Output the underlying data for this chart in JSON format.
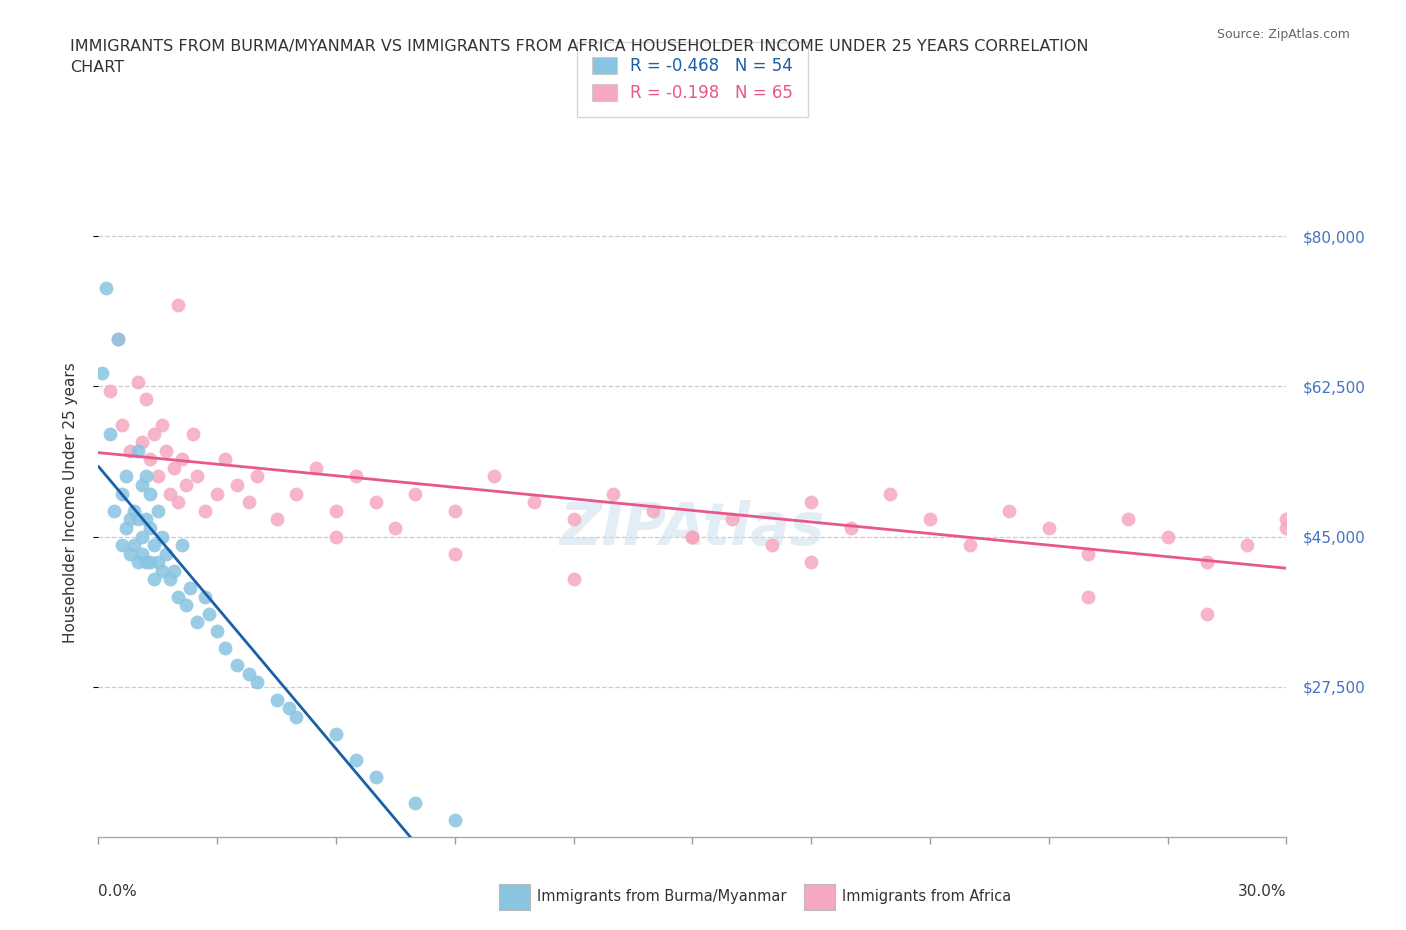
{
  "title_line1": "IMMIGRANTS FROM BURMA/MYANMAR VS IMMIGRANTS FROM AFRICA HOUSEHOLDER INCOME UNDER 25 YEARS CORRELATION",
  "title_line2": "CHART",
  "source_text": "Source: ZipAtlas.com",
  "ylabel": "Householder Income Under 25 years",
  "ytick_labels": [
    "$27,500",
    "$45,000",
    "$62,500",
    "$80,000"
  ],
  "ytick_values": [
    27500,
    45000,
    62500,
    80000
  ],
  "xmin": 0.0,
  "xmax": 0.3,
  "ymin": 10000,
  "ymax": 88000,
  "r_burma": -0.468,
  "n_burma": 54,
  "r_africa": -0.198,
  "n_africa": 65,
  "color_burma": "#89c4e1",
  "color_africa": "#f5a8c0",
  "line_color_burma": "#1a5fa8",
  "line_color_africa": "#e8578a",
  "legend_label_burma": "Immigrants from Burma/Myanmar",
  "legend_label_africa": "Immigrants from Africa",
  "burma_x": [
    0.001,
    0.002,
    0.003,
    0.004,
    0.005,
    0.006,
    0.006,
    0.007,
    0.007,
    0.008,
    0.008,
    0.009,
    0.009,
    0.01,
    0.01,
    0.01,
    0.011,
    0.011,
    0.011,
    0.012,
    0.012,
    0.012,
    0.013,
    0.013,
    0.013,
    0.014,
    0.014,
    0.015,
    0.015,
    0.016,
    0.016,
    0.017,
    0.018,
    0.019,
    0.02,
    0.021,
    0.022,
    0.023,
    0.025,
    0.027,
    0.028,
    0.03,
    0.032,
    0.035,
    0.038,
    0.04,
    0.045,
    0.048,
    0.05,
    0.06,
    0.065,
    0.07,
    0.08,
    0.09
  ],
  "burma_y": [
    64000,
    74000,
    57000,
    48000,
    68000,
    50000,
    44000,
    46000,
    52000,
    47000,
    43000,
    48000,
    44000,
    42000,
    47000,
    55000,
    43000,
    45000,
    51000,
    42000,
    47000,
    52000,
    42000,
    46000,
    50000,
    40000,
    44000,
    42000,
    48000,
    41000,
    45000,
    43000,
    40000,
    41000,
    38000,
    44000,
    37000,
    39000,
    35000,
    38000,
    36000,
    34000,
    32000,
    30000,
    29000,
    28000,
    26000,
    25000,
    24000,
    22000,
    19000,
    17000,
    14000,
    12000
  ],
  "africa_x": [
    0.003,
    0.005,
    0.006,
    0.008,
    0.01,
    0.011,
    0.012,
    0.013,
    0.014,
    0.015,
    0.016,
    0.017,
    0.018,
    0.019,
    0.02,
    0.021,
    0.022,
    0.024,
    0.025,
    0.027,
    0.03,
    0.032,
    0.035,
    0.038,
    0.04,
    0.045,
    0.05,
    0.055,
    0.06,
    0.065,
    0.07,
    0.075,
    0.08,
    0.09,
    0.1,
    0.11,
    0.12,
    0.13,
    0.14,
    0.15,
    0.16,
    0.17,
    0.18,
    0.19,
    0.2,
    0.21,
    0.22,
    0.23,
    0.24,
    0.25,
    0.26,
    0.27,
    0.28,
    0.29,
    0.3,
    0.305,
    0.06,
    0.09,
    0.12,
    0.15,
    0.18,
    0.25,
    0.28,
    0.3,
    0.02
  ],
  "africa_y": [
    62000,
    68000,
    58000,
    55000,
    63000,
    56000,
    61000,
    54000,
    57000,
    52000,
    58000,
    55000,
    50000,
    53000,
    49000,
    54000,
    51000,
    57000,
    52000,
    48000,
    50000,
    54000,
    51000,
    49000,
    52000,
    47000,
    50000,
    53000,
    48000,
    52000,
    49000,
    46000,
    50000,
    48000,
    52000,
    49000,
    47000,
    50000,
    48000,
    45000,
    47000,
    44000,
    49000,
    46000,
    50000,
    47000,
    44000,
    48000,
    46000,
    43000,
    47000,
    45000,
    42000,
    44000,
    47000,
    46000,
    45000,
    43000,
    40000,
    45000,
    42000,
    38000,
    36000,
    46000,
    72000
  ]
}
